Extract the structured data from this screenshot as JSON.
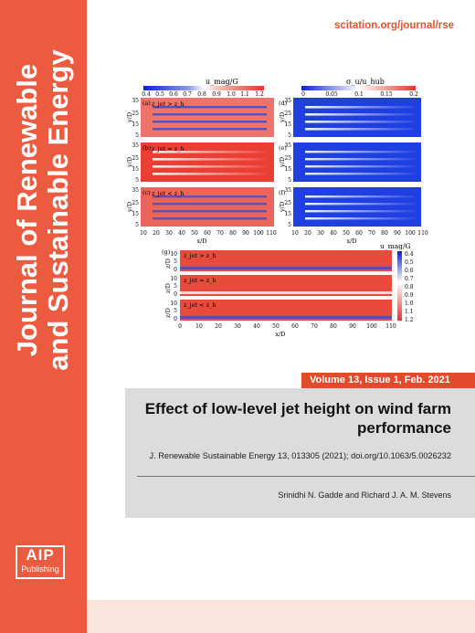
{
  "cover": {
    "journal_title_line1": "Journal of Renewable",
    "journal_title_line2": "and Sustainable Energy",
    "url": "scitation.org/journal/rse",
    "volume": "Volume 13, Issue 1, Feb. 2021",
    "article_title": "Effect of low-level jet height on wind farm performance",
    "citation": "J. Renewable Sustainable Energy 13, 013305 (2021); doi.org/10.1063/5.0026232",
    "authors": "Srinidhi N. Gadde and Richard J. A. M. Stevens",
    "publisher_logo_big": "AIP",
    "publisher_logo_small": "Publishing",
    "colors": {
      "spine": "#ec5a3f",
      "accent": "#e24a2c",
      "url": "#e8502f",
      "panel": "#dcdcdc",
      "bottom_strip": "#fbe4dc"
    }
  },
  "figure": {
    "colorbar_umag_title": "u_mag/G",
    "colorbar_umag_ticks": [
      "0.4",
      "0.5",
      "0.6",
      "0.7",
      "0.8",
      "0.9",
      "1.0",
      "1.1",
      "1.2"
    ],
    "colorbar_sigma_title": "σ_u/u_hub",
    "colorbar_sigma_ticks": [
      "0",
      "0.05",
      "0.1",
      "0.15",
      "0.2"
    ],
    "panel_labels": [
      "(a)",
      "(b)",
      "(c)",
      "(d)",
      "(e)",
      "(f)",
      "(g)"
    ],
    "condition_above": "z_jet > z_h",
    "condition_equal": "z_jet ≈ z_h",
    "condition_below": "z_jet < z_h",
    "ylabel_top": "y/D",
    "ytick_top": [
      "35",
      "25",
      "15",
      "5"
    ],
    "xlabel": "x/D",
    "xticks_top": [
      "10",
      "20",
      "30",
      "40",
      "50",
      "60",
      "70",
      "80",
      "90",
      "100",
      "110"
    ],
    "ylabel_bottom": "z/D",
    "yticks_bottom": [
      "10",
      "5",
      "0"
    ],
    "xticks_bottom": [
      "0",
      "10",
      "20",
      "30",
      "40",
      "50",
      "60",
      "70",
      "80",
      "90",
      "100",
      "110"
    ],
    "colorbar_vert_title": "u_mag/G",
    "colorbar_vert_ticks": [
      "0.4",
      "0.5",
      "0.6",
      "0.7",
      "0.8",
      "0.9",
      "1.0",
      "1.1",
      "1.2"
    ]
  }
}
